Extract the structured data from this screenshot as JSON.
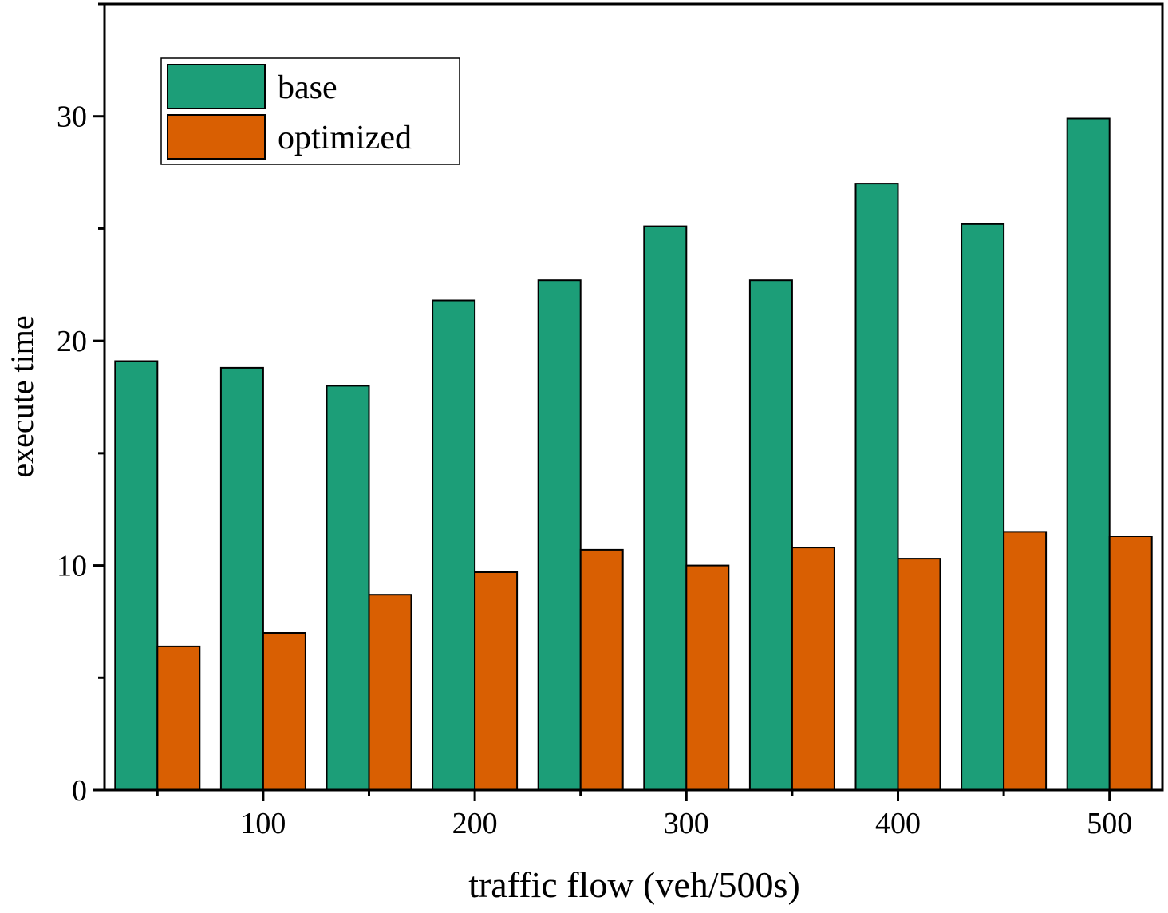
{
  "chart_data": {
    "type": "bar",
    "title": "",
    "xlabel": "traffic flow (veh/500s)",
    "ylabel": "execute time",
    "x": [
      50,
      100,
      150,
      200,
      250,
      300,
      350,
      400,
      450,
      500
    ],
    "xticks": [
      100,
      200,
      300,
      400,
      500
    ],
    "xlim": [
      25,
      525
    ],
    "yticks": [
      0,
      10,
      20,
      30
    ],
    "ylim": [
      0,
      35
    ],
    "grid": false,
    "legend_position": "top-left",
    "series": [
      {
        "name": "base",
        "color": "#1c9e78",
        "values": [
          19.1,
          18.8,
          18.0,
          21.8,
          22.7,
          25.1,
          22.7,
          27.0,
          25.2,
          29.9
        ]
      },
      {
        "name": "optimized",
        "color": "#d95f02",
        "values": [
          6.4,
          7.0,
          8.7,
          9.7,
          10.7,
          10.0,
          10.8,
          10.3,
          11.5,
          11.3
        ]
      }
    ]
  }
}
